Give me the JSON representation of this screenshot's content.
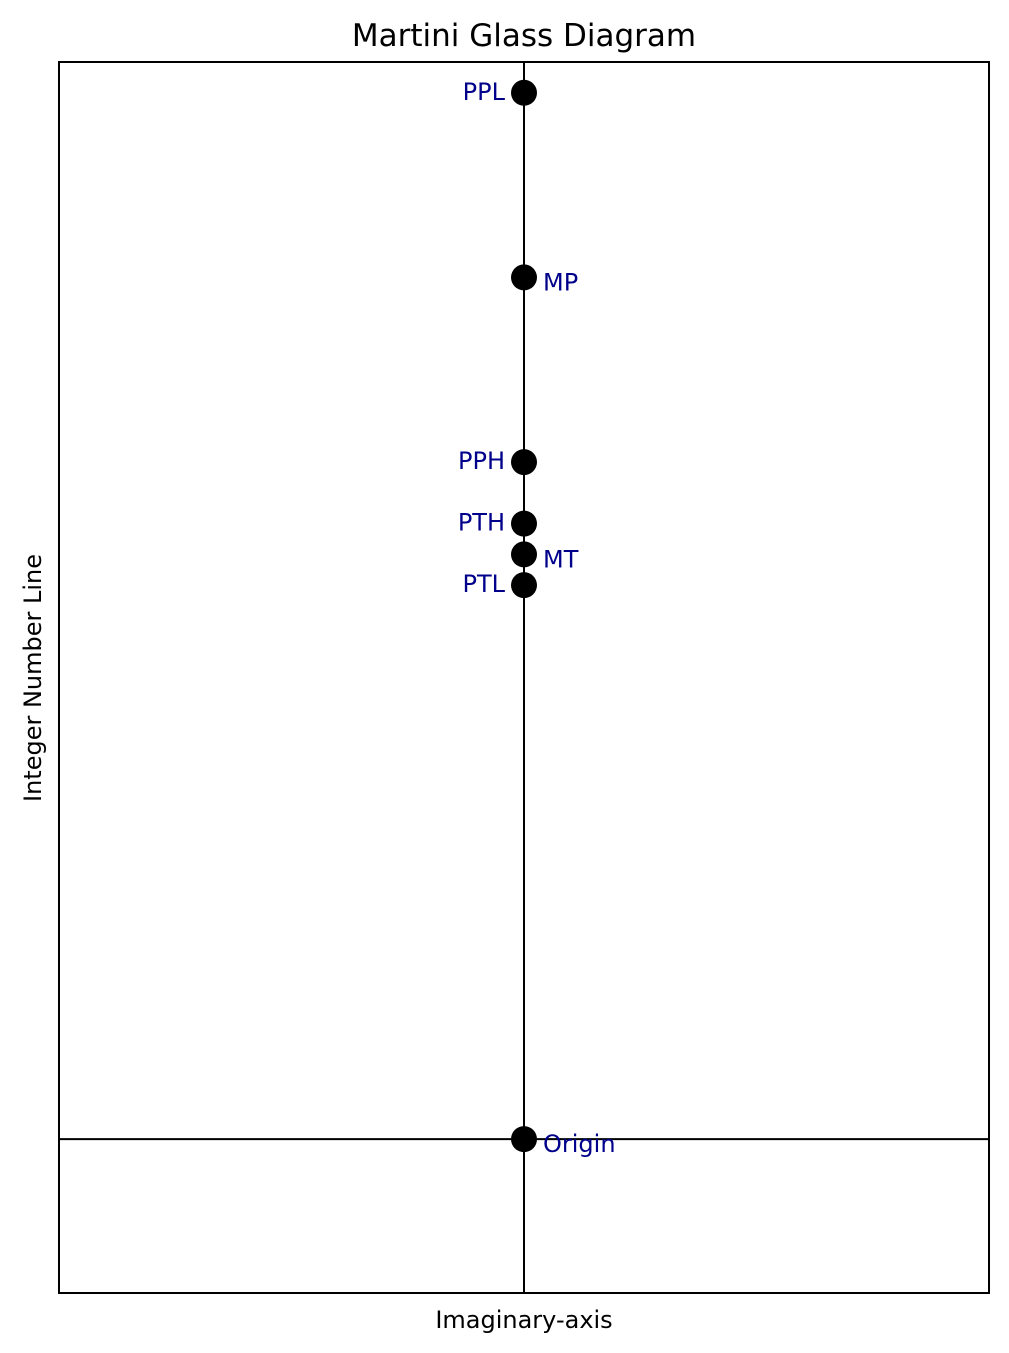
{
  "chart_data": {
    "type": "scatter",
    "title": "Martini Glass Diagram",
    "xlabel": "Imaginary-axis",
    "ylabel": "Integer Number Line",
    "xlim": [
      -1,
      1
    ],
    "ylim": [
      -5,
      35
    ],
    "grid": false,
    "legend": "none",
    "points": [
      {
        "label": "PPL",
        "x": 0,
        "y": 34,
        "label_side": "left"
      },
      {
        "label": "MP",
        "x": 0,
        "y": 28,
        "label_side": "right"
      },
      {
        "label": "PPH",
        "x": 0,
        "y": 22,
        "label_side": "left"
      },
      {
        "label": "PTH",
        "x": 0,
        "y": 20,
        "label_side": "left"
      },
      {
        "label": "MT",
        "x": 0,
        "y": 19,
        "label_side": "right"
      },
      {
        "label": "PTL",
        "x": 0,
        "y": 18,
        "label_side": "left"
      },
      {
        "label": "Origin",
        "x": 0,
        "y": 0,
        "label_side": "right"
      }
    ],
    "colors": {
      "marker": "#000000",
      "label": "#00008b",
      "axes": "#000000"
    }
  }
}
